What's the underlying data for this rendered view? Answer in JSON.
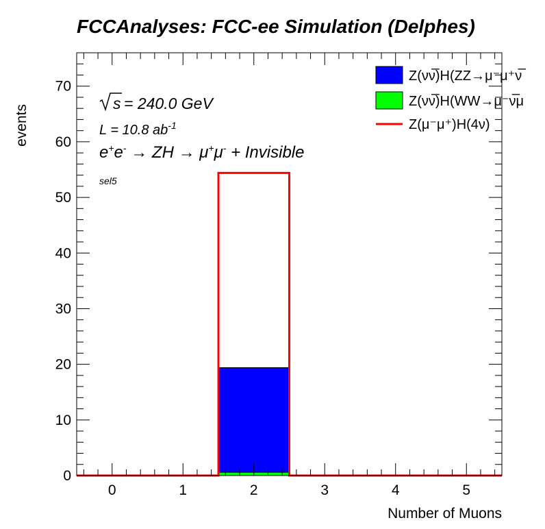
{
  "chart_data": {
    "type": "bar",
    "title": "FCCAnalyses: FCC-ee Simulation (Delphes)",
    "xlabel": "Number of Muons",
    "ylabel": "events",
    "xlim": [
      -0.5,
      5.5
    ],
    "ylim": [
      0,
      76
    ],
    "x_ticks": [
      0,
      1,
      2,
      3,
      4,
      5
    ],
    "y_ticks": [
      0,
      10,
      20,
      30,
      40,
      50,
      60,
      70
    ],
    "bin_edges": [
      -0.5,
      0.5,
      1.5,
      2.5,
      3.5,
      4.5,
      5.5
    ],
    "categories": [
      "0",
      "1",
      "2",
      "3",
      "4",
      "5"
    ],
    "series": [
      {
        "name": "Z(νν̅)H(WW→μ⁻ν̅μ",
        "style": "stacked-fill",
        "color": "#00ff00",
        "values": [
          0,
          0,
          0.6,
          0,
          0,
          0
        ]
      },
      {
        "name": "Z(νν̅)H(ZZ→μ⁻μ⁺νν",
        "style": "stacked-fill",
        "color": "#0000ff",
        "values": [
          0,
          0,
          18.8,
          0,
          0,
          0
        ]
      },
      {
        "name": "Z(μ⁻μ⁺)H(4ν)",
        "style": "line",
        "color": "#ff0000",
        "values": [
          0,
          0,
          54.4,
          0,
          0,
          0
        ]
      }
    ],
    "annotations": {
      "sqrt_s": "= 240.0 GeV",
      "lumi_main": "L = 10.8 ab",
      "lumi_exp": "-1",
      "selection": "sel5"
    },
    "legend": {
      "placement": "top-right",
      "entries": [
        {
          "label": "Z(νν̅)H(ZZ→μ⁻μ⁺ν̅",
          "style": "box",
          "color": "#0000ff"
        },
        {
          "label": "Z(νν̅)H(WW→μ⁻ν̅μ",
          "style": "box",
          "color": "#00ff00"
        },
        {
          "label": "Z(μ⁻μ⁺)H(4ν)",
          "style": "line",
          "color": "#ff0000"
        }
      ]
    },
    "grid": false
  }
}
